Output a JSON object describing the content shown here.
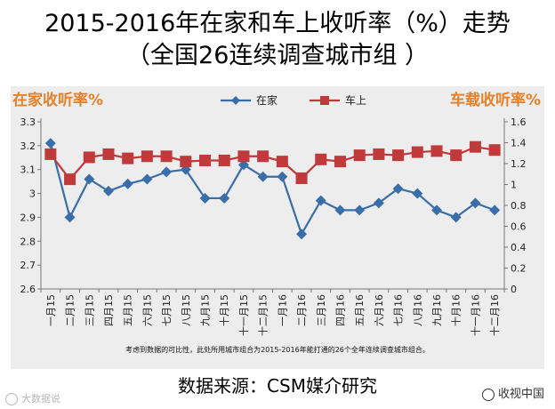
{
  "header": {
    "title_line1": "2015-2016年在家和车上收听率（%）走势",
    "title_line2": "（全国26连续调查城市组 ）"
  },
  "footer": {
    "note": "考虑到数据的可比性，此处所用城市组合为2015-2016年能打通的26个全年连续调查城市组合。",
    "source": "数据来源：CSM媒介研究"
  },
  "watermark": {
    "left_text": "大数据说",
    "right_text": "收视中国"
  },
  "colors": {
    "home_series": "#3a6ea8",
    "car_series": "#c0393b",
    "axis_title": "#e4812a",
    "plot_background": "#ededed"
  },
  "chart_data": {
    "type": "line",
    "categories": [
      "一月15",
      "二月15",
      "三月15",
      "四月15",
      "五月15",
      "六月15",
      "七月15",
      "八月15",
      "九月15",
      "十月15",
      "十一月15",
      "十二月15",
      "一月16",
      "二月16",
      "三月16",
      "四月16",
      "五月16",
      "六月16",
      "七月16",
      "八月16",
      "九月16",
      "十月16",
      "十一月16",
      "十二月16"
    ],
    "series": [
      {
        "name": "在家",
        "axis": "left",
        "marker": "diamond",
        "values": [
          3.21,
          2.9,
          3.06,
          3.01,
          3.04,
          3.06,
          3.09,
          3.1,
          2.98,
          2.98,
          3.12,
          3.07,
          3.07,
          2.83,
          2.97,
          2.93,
          2.93,
          2.96,
          3.02,
          3.0,
          2.93,
          2.9,
          2.96,
          2.93
        ]
      },
      {
        "name": "车上",
        "axis": "right",
        "marker": "square",
        "values": [
          1.29,
          1.05,
          1.26,
          1.29,
          1.25,
          1.27,
          1.27,
          1.22,
          1.23,
          1.23,
          1.27,
          1.27,
          1.22,
          1.06,
          1.24,
          1.22,
          1.28,
          1.29,
          1.28,
          1.31,
          1.32,
          1.28,
          1.36,
          1.33
        ]
      }
    ],
    "left_axis": {
      "title": "在家收听率%",
      "min": 2.6,
      "max": 3.3,
      "step": 0.1,
      "tick_labels": [
        "2.6",
        "2.7",
        "2.8",
        "2.9",
        "3",
        "3.1",
        "3.2",
        "3.3"
      ]
    },
    "right_axis": {
      "title": "车载收听率%",
      "min": 0,
      "max": 1.6,
      "step": 0.2,
      "tick_labels": [
        "0",
        "0.2",
        "0.4",
        "0.6",
        "0.8",
        "1",
        "1.2",
        "1.4",
        "1.6"
      ]
    },
    "legend_position": "top-center",
    "grid": false
  }
}
